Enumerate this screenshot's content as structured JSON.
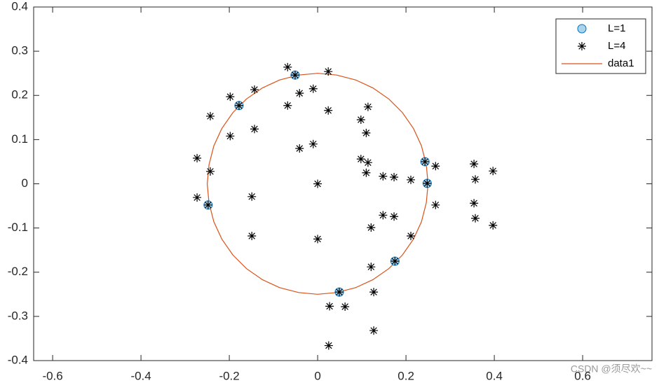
{
  "chart_data": {
    "type": "scatter",
    "xlim": [
      -0.643,
      0.757
    ],
    "ylim": [
      -0.4,
      0.4
    ],
    "xticks": [
      -0.6,
      -0.4,
      -0.2,
      0,
      0.2,
      0.4,
      0.6
    ],
    "yticks": [
      -0.4,
      -0.3,
      -0.2,
      -0.1,
      0,
      0.1,
      0.2,
      0.3,
      0.4
    ],
    "legend": "northeast",
    "watermark": "CSDN @须尽欢~~",
    "series": [
      {
        "name": "L=1",
        "type": "scatter",
        "marker": "o",
        "color": "#0072BD",
        "x": [
          -0.051,
          -0.178,
          -0.248,
          0.049,
          0.175,
          0.248,
          0.243
        ],
        "y": [
          0.246,
          0.177,
          -0.048,
          -0.245,
          -0.175,
          0.001,
          0.05
        ]
      },
      {
        "name": "L=4",
        "type": "scatter",
        "marker": "*",
        "color": "#000000",
        "x": [
          -0.068,
          -0.051,
          0.024,
          -0.143,
          -0.198,
          -0.178,
          -0.068,
          -0.041,
          -0.01,
          0.024,
          0.114,
          0.098,
          0.11,
          -0.243,
          -0.143,
          -0.198,
          -0.041,
          -0.01,
          0.098,
          0.114,
          0.11,
          0.148,
          0.173,
          0.211,
          0.243,
          0.267,
          0.248,
          0.354,
          0.357,
          0.397,
          -0.273,
          -0.243,
          -0.273,
          -0.248,
          0,
          -0.149,
          -0.149,
          0,
          0.148,
          0.173,
          0.267,
          0.354,
          0.357,
          0.397,
          0.121,
          0.211,
          0.121,
          0.175,
          0.049,
          0.127,
          0.027,
          0.062,
          0.127,
          0.025
        ],
        "y": [
          0.264,
          0.246,
          0.254,
          0.213,
          0.197,
          0.177,
          0.177,
          0.205,
          0.215,
          0.166,
          0.174,
          0.145,
          0.115,
          0.153,
          0.124,
          0.108,
          0.08,
          0.09,
          0.056,
          0.048,
          0.025,
          0.017,
          0.015,
          0.009,
          0.05,
          0.04,
          0.001,
          0.045,
          0.01,
          0.029,
          0.058,
          0.028,
          -0.031,
          -0.048,
          0,
          -0.029,
          -0.118,
          -0.125,
          -0.071,
          -0.074,
          -0.048,
          -0.044,
          -0.078,
          -0.094,
          -0.099,
          -0.118,
          -0.188,
          -0.175,
          -0.245,
          -0.245,
          -0.277,
          -0.278,
          -0.332,
          -0.366
        ]
      },
      {
        "name": "data1",
        "type": "line",
        "color": "#D95319",
        "x": [
          0.25,
          0.246,
          0.235,
          0.217,
          0.192,
          0.161,
          0.125,
          0.086,
          0.043,
          0,
          -0.043,
          -0.086,
          -0.125,
          -0.161,
          -0.192,
          -0.217,
          -0.235,
          -0.246,
          -0.25,
          -0.246,
          -0.235,
          -0.217,
          -0.192,
          -0.161,
          -0.125,
          -0.086,
          -0.043,
          0,
          0.043,
          0.086,
          0.125,
          0.161,
          0.192,
          0.217,
          0.235,
          0.246,
          0.25
        ],
        "y": [
          0,
          0.043,
          0.086,
          0.125,
          0.161,
          0.192,
          0.217,
          0.235,
          0.246,
          0.25,
          0.246,
          0.235,
          0.217,
          0.192,
          0.161,
          0.125,
          0.086,
          0.043,
          0,
          -0.043,
          -0.086,
          -0.125,
          -0.161,
          -0.192,
          -0.217,
          -0.235,
          -0.246,
          -0.25,
          -0.246,
          -0.235,
          -0.217,
          -0.192,
          -0.161,
          -0.125,
          -0.086,
          -0.043,
          0
        ]
      }
    ]
  }
}
